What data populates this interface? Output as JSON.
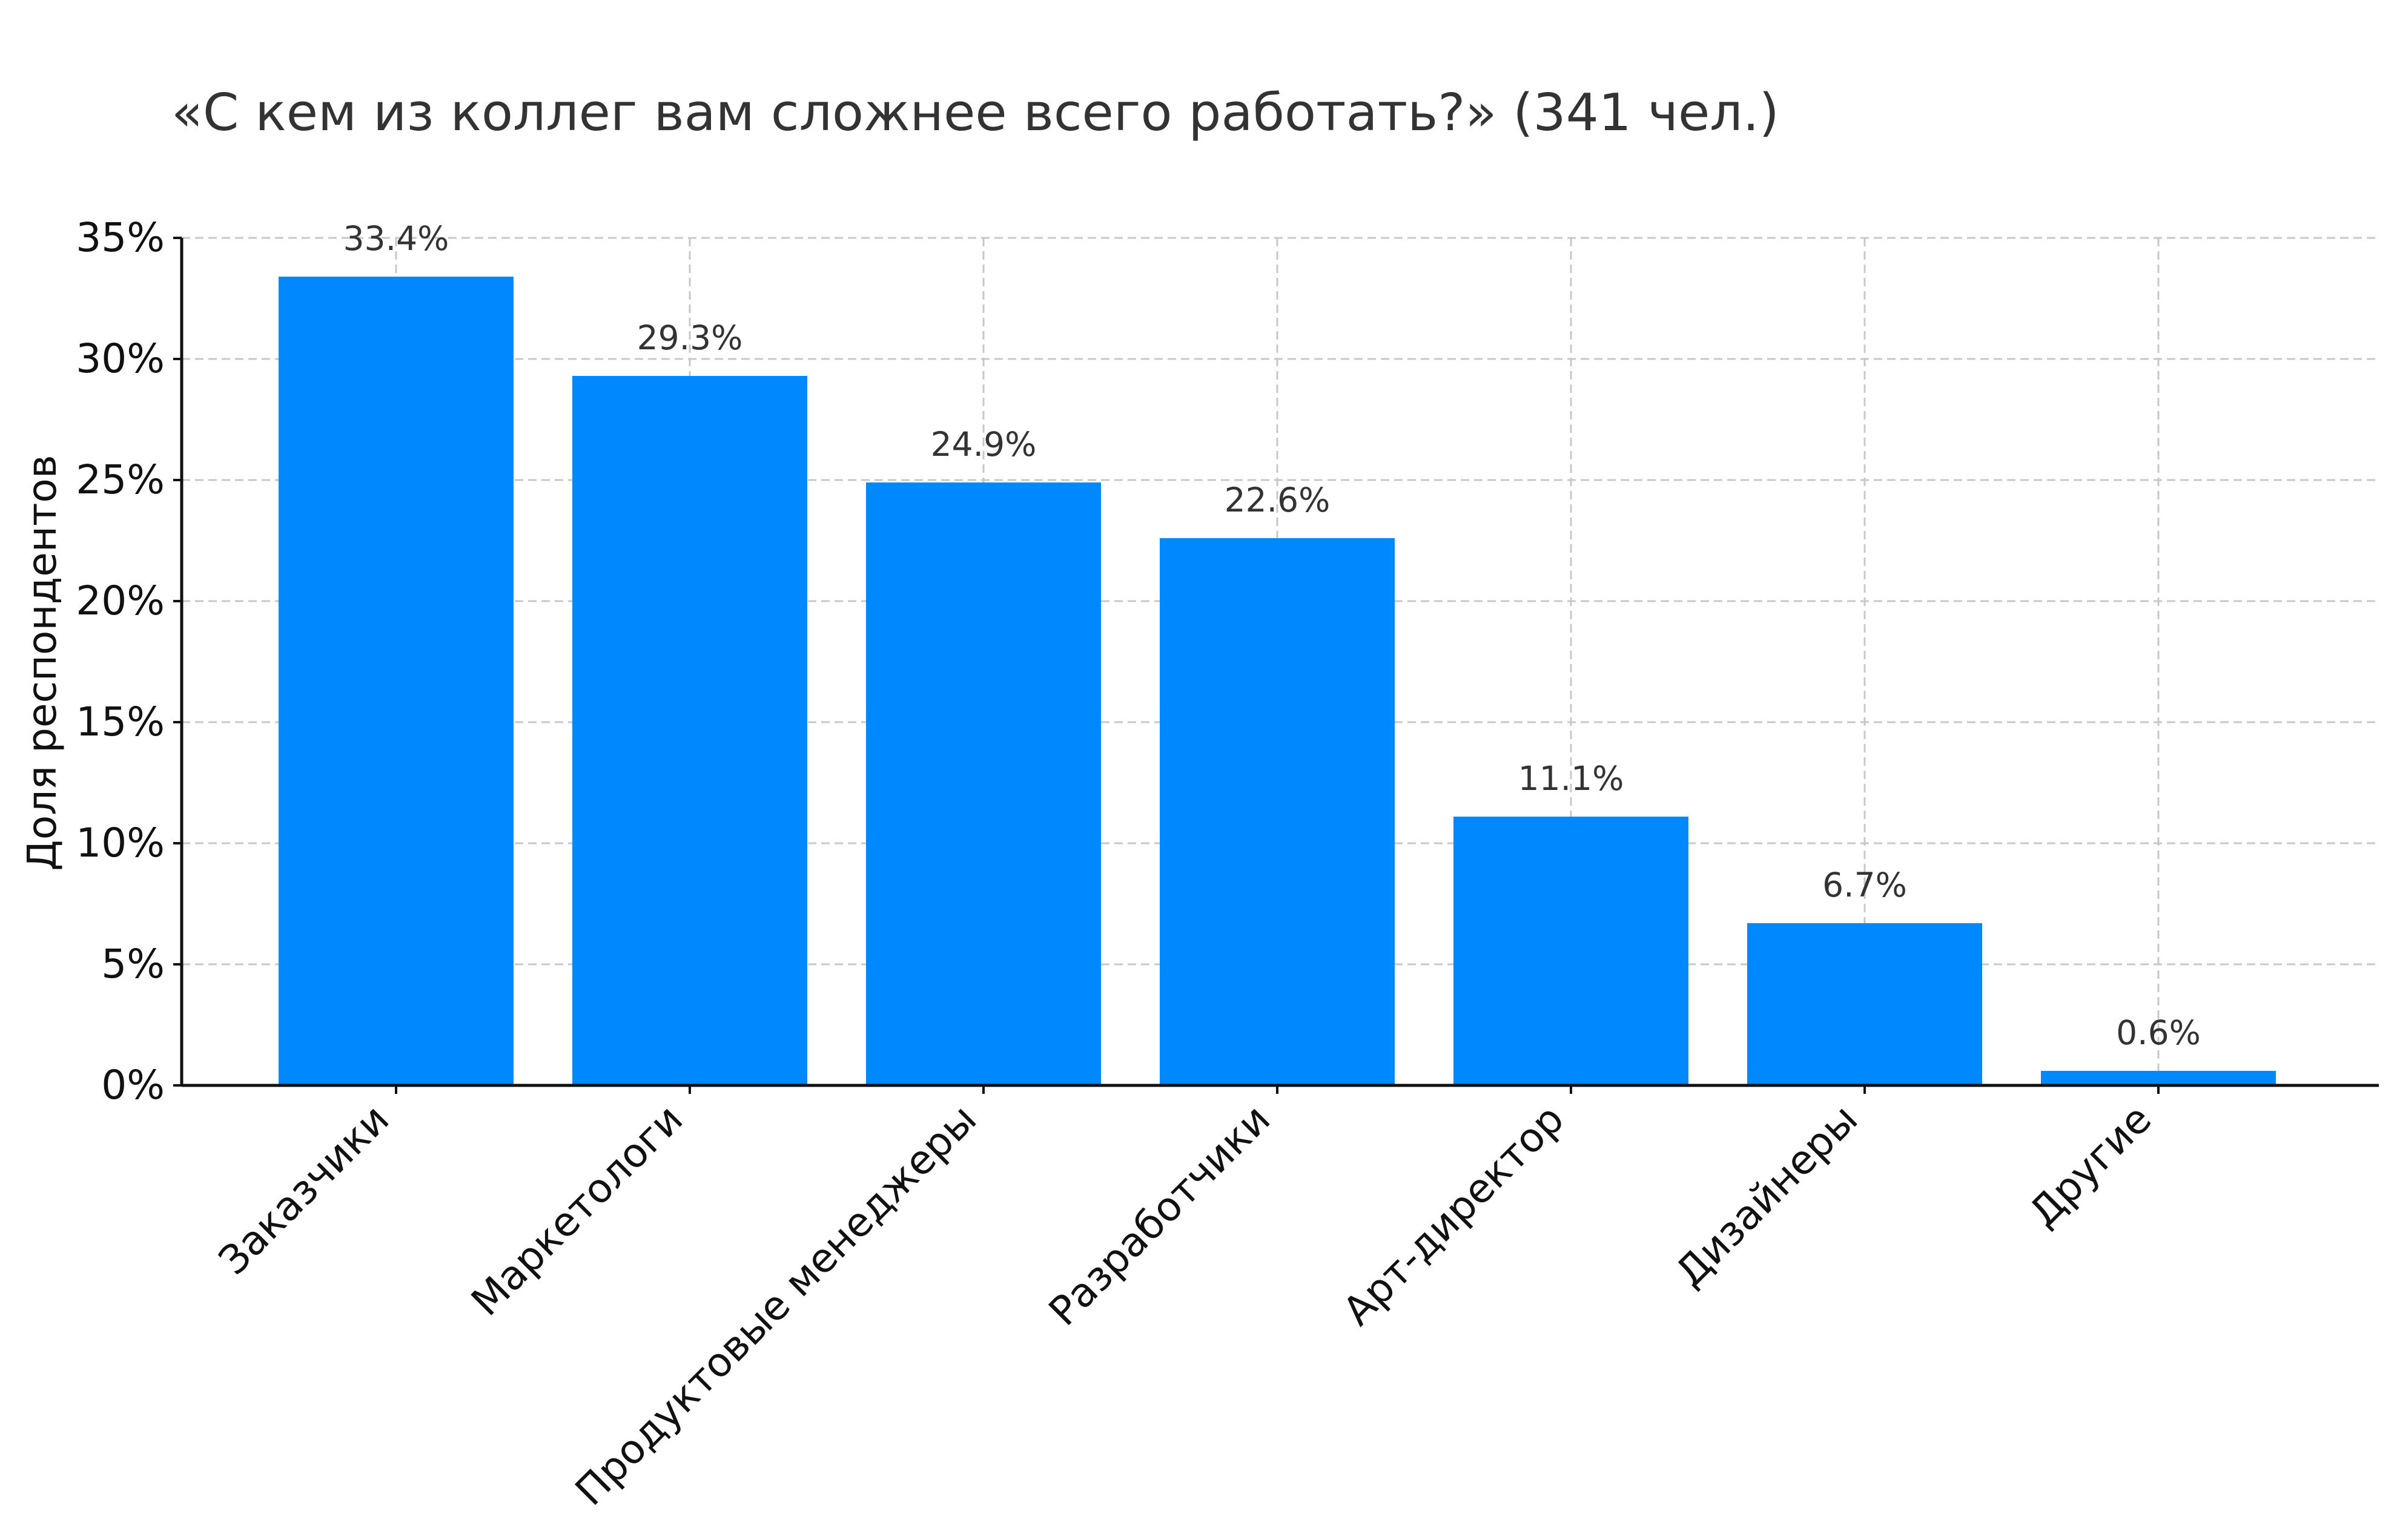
{
  "chart_data": {
    "type": "bar",
    "title": "«С кем из коллег вам сложнее всего работать?» (341 чел.)",
    "xlabel": "",
    "ylabel": "Доля респондентов",
    "categories": [
      "Заказчики",
      "Маркетологи",
      "Продуктовые менеджеры",
      "Разработчики",
      "Арт-директор",
      "Дизайнеры",
      "Другие"
    ],
    "values": [
      33.4,
      29.3,
      24.9,
      22.6,
      11.1,
      6.7,
      0.6
    ],
    "value_labels": [
      "33.4%",
      "29.3%",
      "24.9%",
      "22.6%",
      "11.1%",
      "6.7%",
      "0.6%"
    ],
    "ylim": [
      0,
      35
    ],
    "yticks": [
      0,
      5,
      10,
      15,
      20,
      25,
      30,
      35
    ],
    "ytick_labels": [
      "0%",
      "5%",
      "10%",
      "15%",
      "20%",
      "25%",
      "30%",
      "35%"
    ],
    "grid": true,
    "bar_color": "#0088ff"
  }
}
